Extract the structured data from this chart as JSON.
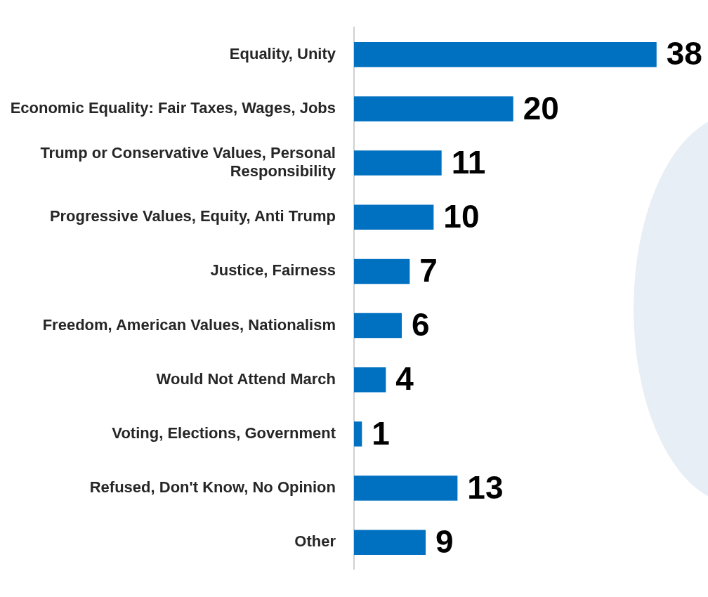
{
  "chart_data": {
    "type": "bar",
    "orientation": "horizontal",
    "categories": [
      "Equality, Unity",
      "Economic Equality: Fair Taxes, Wages, Jobs",
      "Trump or Conservative Values, Personal Responsibility",
      "Progressive Values, Equity, Anti Trump",
      "Justice, Fairness",
      "Freedom, American Values, Nationalism",
      "Would Not Attend March",
      "Voting, Elections, Government",
      "Refused, Don't Know, No Opinion",
      "Other"
    ],
    "values": [
      38,
      20,
      11,
      10,
      7,
      6,
      4,
      1,
      13,
      9
    ],
    "color": "#0070c0",
    "data_labels": true,
    "grid": false,
    "legend": false,
    "tick_labels": "y"
  }
}
